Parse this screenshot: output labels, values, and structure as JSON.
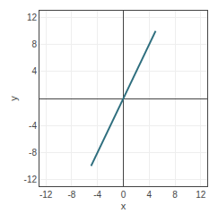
{
  "chart_data": {
    "type": "line",
    "x": [
      -5.0,
      5.0
    ],
    "values": [
      -10.0,
      10.0
    ],
    "color": "#2e6e7e",
    "xlabel": "x",
    "ylabel": "y",
    "xlim": [
      -13,
      13
    ],
    "ylim": [
      -13,
      13
    ],
    "xticks": [
      -12,
      -8,
      -4,
      0,
      4,
      8,
      12
    ],
    "yticks": [
      -12,
      -8,
      -4,
      4,
      8,
      12
    ],
    "grid": true
  }
}
